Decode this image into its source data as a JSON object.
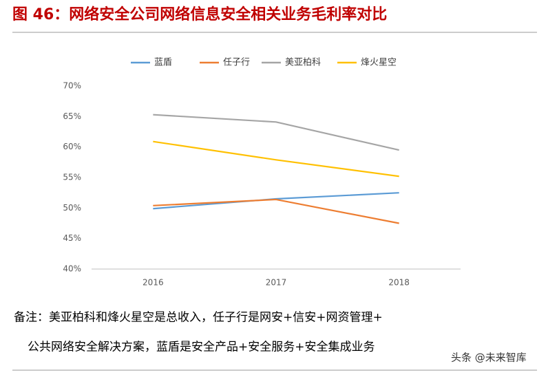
{
  "chart_data": {
    "type": "line",
    "title": "图 46：网络安全公司网络信息安全相关业务毛利率对比",
    "categories": [
      "2016",
      "2017",
      "2018"
    ],
    "series": [
      {
        "name": "蓝盾",
        "color": "#5b9bd5",
        "values": [
          49.9,
          51.5,
          52.5
        ]
      },
      {
        "name": "任子行",
        "color": "#ed7d31",
        "values": [
          50.4,
          51.4,
          47.5
        ]
      },
      {
        "name": "美亚柏科",
        "color": "#a5a5a5",
        "values": [
          65.3,
          64.1,
          59.5
        ]
      },
      {
        "name": "烽火星空",
        "color": "#ffc000",
        "values": [
          60.9,
          57.9,
          55.2
        ]
      }
    ],
    "ylim": [
      40,
      70
    ],
    "yticks": [
      {
        "value": 40,
        "label": "40%"
      },
      {
        "value": 45,
        "label": "45%"
      },
      {
        "value": 50,
        "label": "50%"
      },
      {
        "value": 55,
        "label": "55%"
      },
      {
        "value": 60,
        "label": "60%"
      },
      {
        "value": 65,
        "label": "65%"
      },
      {
        "value": 70,
        "label": "70%"
      }
    ],
    "grid": false,
    "legend": "top"
  },
  "notes": [
    "备注：美亚柏科和烽火星空是总收入，任子行是网安+信安+网资管理+",
    "公共网络安全解决方案，蓝盾是安全产品+安全服务+安全集成业务"
  ],
  "watermark": "头条 @未来智库"
}
